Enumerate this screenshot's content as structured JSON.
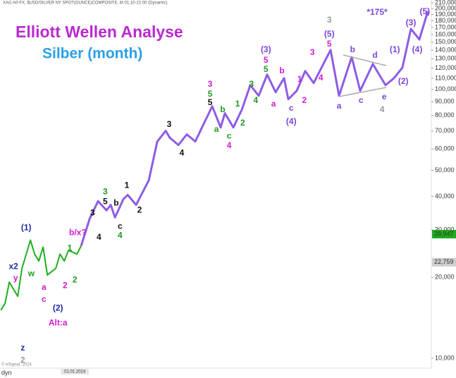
{
  "chart_data": {
    "type": "line",
    "header": "XAG A0-FX, $USD/SILVER NY SPOT(OUNCE)COMPOSITE, M  01.10-22:00 (Dynamic)",
    "title": "Elliott Wellen Analyse",
    "subtitle": "Silber (month)",
    "footer": "© eSignal, 2024",
    "period": "dyn",
    "log_scale": true,
    "xlim": [
      -19.2,
      82.5
    ],
    "ylim": [
      9300,
      215000
    ],
    "xticks": [
      {
        "value": -1.5,
        "label": "01.01.2024"
      }
    ],
    "yticks": [
      {
        "value": 10000,
        "label": "10,000"
      },
      {
        "value": 20000,
        "label": "20,000"
      },
      {
        "value": 30000,
        "label": "30,000"
      },
      {
        "value": 40000,
        "label": "40,000"
      },
      {
        "value": 50000,
        "label": "50,000"
      },
      {
        "value": 60000,
        "label": "60,000"
      },
      {
        "value": 70000,
        "label": "70,000"
      },
      {
        "value": 80000,
        "label": "80,000"
      },
      {
        "value": 90000,
        "label": "90,000"
      },
      {
        "value": 100000,
        "label": "100,000"
      },
      {
        "value": 110000,
        "label": "110,000"
      },
      {
        "value": 120000,
        "label": "120,000"
      },
      {
        "value": 130000,
        "label": "130,000"
      },
      {
        "value": 140000,
        "label": "140,000"
      },
      {
        "value": 150000,
        "label": "150,000"
      },
      {
        "value": 160000,
        "label": "160,000"
      },
      {
        "value": 170000,
        "label": "170,000"
      },
      {
        "value": 180000,
        "label": "180,000"
      },
      {
        "value": 190000,
        "label": "190,000"
      },
      {
        "value": 200000,
        "label": "200,000"
      },
      {
        "value": 210000,
        "label": "210,000"
      }
    ],
    "price_tags": [
      {
        "value": 28947,
        "label": "28,947",
        "color": "#1faa1f"
      },
      {
        "value": 22759,
        "label": "22,759",
        "color": "#cfcfcf"
      }
    ],
    "series": [
      {
        "color": "#1fae1f",
        "x": [
          -19,
          -18,
          -17,
          -15,
          -14,
          -12,
          -11,
          -10,
          -9,
          -8,
          -6,
          -5,
          -4,
          -3,
          -1,
          0
        ],
        "values": [
          15100,
          16000,
          19200,
          17000,
          21600,
          27500,
          24400,
          23000,
          25900,
          20400,
          21600,
          24400,
          23000,
          25200,
          24400,
          26200
        ]
      },
      {
        "color": "#8e5ce6",
        "x": [
          0,
          2,
          4,
          6,
          7,
          8,
          10,
          11,
          13,
          16,
          18,
          20,
          21,
          23,
          25,
          27,
          29,
          31,
          33,
          34,
          36,
          38,
          40,
          42,
          44,
          46,
          48,
          49,
          51,
          53,
          55,
          59,
          61,
          64,
          66,
          69,
          72,
          74,
          76,
          78,
          80,
          82
        ],
        "values": [
          26200,
          33000,
          38400,
          35500,
          37200,
          33400,
          39100,
          40500,
          37200,
          45900,
          64000,
          70100,
          66000,
          62100,
          68000,
          64000,
          74500,
          86500,
          72200,
          81500,
          72200,
          84000,
          103700,
          94700,
          113500,
          97600,
          110100,
          91900,
          98800,
          117000,
          105600,
          140200,
          94700,
          131900,
          98800,
          124300,
          103700,
          110100,
          120500,
          167900,
          153400,
          195300
        ]
      }
    ],
    "annotations": [
      {
        "text": "3",
        "color": "#9a9a9a",
        "x": 58.7,
        "y": 180500
      },
      {
        "text": "(5)",
        "color": "#7b45d8",
        "x": 58.7,
        "y": 160000
      },
      {
        "text": "5",
        "color": "#d21ad2",
        "x": 58.7,
        "y": 147100
      },
      {
        "text": "*175*",
        "color": "#7b45d8",
        "x": 70,
        "y": 192900
      },
      {
        "text": "(3)",
        "color": "#7b45d8",
        "x": 78,
        "y": 176200
      },
      {
        "text": "(5)",
        "color": "#7b45d8",
        "x": 81.3,
        "y": 194100
      },
      {
        "text": "(1)",
        "color": "#7b45d8",
        "x": 74.2,
        "y": 140200
      },
      {
        "text": "(4)",
        "color": "#7b45d8",
        "x": 79.5,
        "y": 140200
      },
      {
        "text": "(2)",
        "color": "#7b45d8",
        "x": 76.2,
        "y": 106900
      },
      {
        "text": "b",
        "color": "#7b45d8",
        "x": 64.2,
        "y": 140200
      },
      {
        "text": "d",
        "color": "#7b45d8",
        "x": 69.5,
        "y": 133600
      },
      {
        "text": "a",
        "color": "#7b45d8",
        "x": 61,
        "y": 86500
      },
      {
        "text": "c",
        "color": "#7b45d8",
        "x": 66.2,
        "y": 90800
      },
      {
        "text": "e",
        "color": "#7b45d8",
        "x": 71.7,
        "y": 93600
      },
      {
        "text": "4",
        "color": "#9a9a9a",
        "x": 71.2,
        "y": 84000
      },
      {
        "text": "(3)",
        "color": "#7b45d8",
        "x": 43.7,
        "y": 140200
      },
      {
        "text": "5",
        "color": "#d21ad2",
        "x": 43.7,
        "y": 128000
      },
      {
        "text": "5",
        "color": "#1f9a1f",
        "x": 43.7,
        "y": 118400
      },
      {
        "text": "3",
        "color": "#d21ad2",
        "x": 54.7,
        "y": 136800
      },
      {
        "text": "4",
        "color": "#d21ad2",
        "x": 56.7,
        "y": 110100
      },
      {
        "text": "1",
        "color": "#d21ad2",
        "x": 51.7,
        "y": 108800
      },
      {
        "text": "2",
        "color": "#d21ad2",
        "x": 52.8,
        "y": 90800
      },
      {
        "text": "b",
        "color": "#d21ad2",
        "x": 47.5,
        "y": 117000
      },
      {
        "text": "a",
        "color": "#d21ad2",
        "x": 45.5,
        "y": 88100
      },
      {
        "text": "c",
        "color": "#7b45d8",
        "x": 49.7,
        "y": 85000
      },
      {
        "text": "(4)",
        "color": "#7b45d8",
        "x": 49.7,
        "y": 75800
      },
      {
        "text": "3",
        "color": "#1f9a1f",
        "x": 40.3,
        "y": 104300
      },
      {
        "text": "4",
        "color": "#1f9a1f",
        "x": 41.3,
        "y": 90800
      },
      {
        "text": "3",
        "color": "#d21ad2",
        "x": 30.5,
        "y": 104300
      },
      {
        "text": "5",
        "color": "#1f9a1f",
        "x": 30.5,
        "y": 95900
      },
      {
        "text": "5",
        "color": "#111111",
        "x": 30.5,
        "y": 89200
      },
      {
        "text": "b",
        "color": "#1f9a1f",
        "x": 33.5,
        "y": 84000
      },
      {
        "text": "1",
        "color": "#1f9a1f",
        "x": 37,
        "y": 88100
      },
      {
        "text": "2",
        "color": "#1f9a1f",
        "x": 38.2,
        "y": 74900
      },
      {
        "text": "a",
        "color": "#1f9a1f",
        "x": 32,
        "y": 70900
      },
      {
        "text": "c",
        "color": "#1f9a1f",
        "x": 35,
        "y": 66800
      },
      {
        "text": "4",
        "color": "#d21ad2",
        "x": 35,
        "y": 61700
      },
      {
        "text": "3",
        "color": "#111111",
        "x": 20.8,
        "y": 74000
      },
      {
        "text": "4",
        "color": "#111111",
        "x": 23.8,
        "y": 57800
      },
      {
        "text": "1",
        "color": "#111111",
        "x": 10.8,
        "y": 43800
      },
      {
        "text": "2",
        "color": "#111111",
        "x": 13.8,
        "y": 35500
      },
      {
        "text": "3",
        "color": "#1f9a1f",
        "x": 5.7,
        "y": 41500
      },
      {
        "text": "5",
        "color": "#111111",
        "x": 5.7,
        "y": 38100
      },
      {
        "text": "b",
        "color": "#111111",
        "x": 8.3,
        "y": 37700
      },
      {
        "text": "c",
        "color": "#111111",
        "x": 9.2,
        "y": 30900
      },
      {
        "text": "4",
        "color": "#1f9a1f",
        "x": 9.2,
        "y": 28500
      },
      {
        "text": "3",
        "color": "#111111",
        "x": 2.7,
        "y": 34600
      },
      {
        "text": "4",
        "color": "#111111",
        "x": 4.2,
        "y": 28100
      },
      {
        "text": "b/x?",
        "color": "#d21ad2",
        "x": -0.8,
        "y": 29200
      },
      {
        "text": "(1)",
        "color": "#1f2a9c",
        "x": -13,
        "y": 30500
      },
      {
        "text": "x2",
        "color": "#1f2a9c",
        "x": -16,
        "y": 21900
      },
      {
        "text": "y",
        "color": "#d21ad2",
        "x": -15.5,
        "y": 19800
      },
      {
        "text": "w",
        "color": "#1f9a1f",
        "x": -11.8,
        "y": 20600
      },
      {
        "text": "z",
        "color": "#1f2a9c",
        "x": -13.8,
        "y": 10900
      },
      {
        "text": "2",
        "color": "#9a9a9a",
        "x": -13.8,
        "y": 9800
      },
      {
        "text": "(2)",
        "color": "#1f2a9c",
        "x": -5.5,
        "y": 15300
      },
      {
        "text": "c",
        "color": "#d21ad2",
        "x": -8.8,
        "y": 16500
      },
      {
        "text": "Alt:a",
        "color": "#d21ad2",
        "x": -5.5,
        "y": 13500
      },
      {
        "text": "a",
        "color": "#d21ad2",
        "x": -8.8,
        "y": 18300
      },
      {
        "text": "2",
        "color": "#d21ad2",
        "x": -3.8,
        "y": 18600
      },
      {
        "text": "1",
        "color": "#1f9a1f",
        "x": -2.7,
        "y": 25600
      },
      {
        "text": "2",
        "color": "#1f9a1f",
        "x": -1.5,
        "y": 19500
      }
    ]
  }
}
